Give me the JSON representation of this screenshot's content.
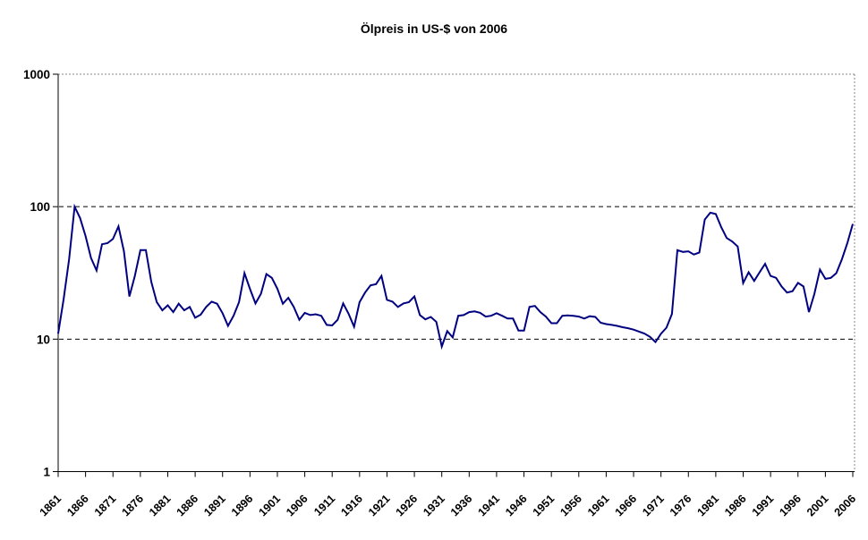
{
  "title": "Ölpreis in US-$ von 2006",
  "chart_data": {
    "type": "line",
    "title": "Ölpreis in US-$ von 2006",
    "legend": "none",
    "grid": {
      "dashed_horizontal_lines_at": [
        10,
        100
      ],
      "style": "dashed-black"
    },
    "y_axis": {
      "scale": "log",
      "range": [
        1,
        1000
      ],
      "ticks": [
        1,
        10,
        100,
        1000
      ],
      "tick_labels": [
        "1",
        "10",
        "100",
        "1000"
      ]
    },
    "x_axis": {
      "first_year": 1861,
      "last_year": 2006,
      "tick_interval_years": 5,
      "label_rotation_deg": -45,
      "tick_labels": [
        "1861",
        "1866",
        "1871",
        "1876",
        "1881",
        "1886",
        "1891",
        "1896",
        "1901",
        "1906",
        "1911",
        "1916",
        "1921",
        "1926",
        "1931",
        "1936",
        "1941",
        "1946",
        "1951",
        "1956",
        "1961",
        "1966",
        "1971",
        "1976",
        "1981",
        "1986",
        "1991",
        "1996",
        "2001",
        "2006"
      ]
    },
    "series": [
      {
        "color": "#000080",
        "years": [
          1861,
          1862,
          1863,
          1864,
          1865,
          1866,
          1867,
          1868,
          1869,
          1870,
          1871,
          1872,
          1873,
          1874,
          1875,
          1876,
          1877,
          1878,
          1879,
          1880,
          1881,
          1882,
          1883,
          1884,
          1885,
          1886,
          1887,
          1888,
          1889,
          1890,
          1891,
          1892,
          1893,
          1894,
          1895,
          1896,
          1897,
          1898,
          1899,
          1900,
          1901,
          1902,
          1903,
          1904,
          1905,
          1906,
          1907,
          1908,
          1909,
          1910,
          1911,
          1912,
          1913,
          1914,
          1915,
          1916,
          1917,
          1918,
          1919,
          1920,
          1921,
          1922,
          1923,
          1924,
          1925,
          1926,
          1927,
          1928,
          1929,
          1930,
          1931,
          1932,
          1933,
          1934,
          1935,
          1936,
          1937,
          1938,
          1939,
          1940,
          1941,
          1942,
          1943,
          1944,
          1945,
          1946,
          1947,
          1948,
          1949,
          1950,
          1951,
          1952,
          1953,
          1954,
          1955,
          1956,
          1957,
          1958,
          1959,
          1960,
          1961,
          1962,
          1963,
          1964,
          1965,
          1966,
          1967,
          1968,
          1969,
          1970,
          1971,
          1972,
          1973,
          1974,
          1975,
          1976,
          1977,
          1978,
          1979,
          1980,
          1981,
          1982,
          1983,
          1984,
          1985,
          1986,
          1987,
          1988,
          1989,
          1990,
          1991,
          1992,
          1993,
          1994,
          1995,
          1996,
          1997,
          1998,
          1999,
          2000,
          2001,
          2002,
          2003,
          2004,
          2005,
          2006
        ],
        "values": [
          11,
          20,
          40,
          100,
          82,
          60,
          41,
          33,
          52,
          53,
          57,
          71,
          46,
          21,
          30,
          47,
          47,
          27,
          19,
          16.5,
          18,
          16,
          18.5,
          16.5,
          17.5,
          14.5,
          15.3,
          17.5,
          19.2,
          18.5,
          15.7,
          12.6,
          15,
          19,
          31.5,
          24,
          18.6,
          22,
          31,
          29,
          24,
          18.5,
          20.5,
          17.5,
          14,
          15.8,
          15.2,
          15.4,
          15,
          12.8,
          12.7,
          14,
          18.6,
          15.5,
          12.4,
          19,
          22.5,
          25.5,
          26,
          30,
          19.8,
          19.2,
          17.5,
          18.6,
          19,
          21,
          15.2,
          14.1,
          14.7,
          13.5,
          8.8,
          11.5,
          10.3,
          15,
          15.2,
          16,
          16.2,
          15.8,
          14.8,
          15,
          15.7,
          15,
          14.3,
          14.3,
          11.6,
          11.6,
          17.5,
          17.8,
          16,
          14.8,
          13.2,
          13.2,
          15,
          15.1,
          15,
          14.8,
          14.3,
          14.9,
          14.7,
          13.3,
          13,
          12.8,
          12.6,
          12.3,
          12.1,
          11.8,
          11.4,
          11,
          10.4,
          9.5,
          11,
          12.2,
          15.5,
          47,
          45.5,
          46,
          43.5,
          45,
          80,
          90,
          88,
          70,
          58,
          54.5,
          50,
          26.5,
          32,
          27.5,
          32,
          37,
          30,
          29,
          25,
          22.5,
          23,
          26.6,
          25,
          16,
          22,
          33.5,
          28.5,
          29,
          31.5,
          40,
          53,
          74
        ]
      }
    ]
  },
  "colors": {
    "line": "#000080",
    "axis": "#000000",
    "gridline": "#000000",
    "plot_border": "#888888",
    "background": "#ffffff",
    "text": "#000000"
  }
}
